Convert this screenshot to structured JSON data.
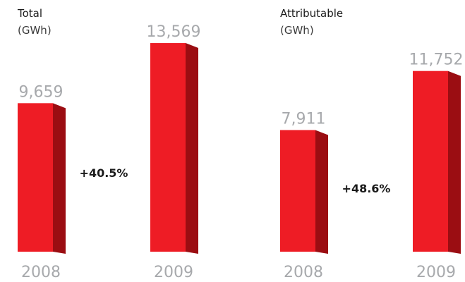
{
  "chart_data": [
    {
      "type": "bar",
      "title": "Total",
      "unit": "(GWh)",
      "categories": [
        "2008",
        "2009"
      ],
      "values": [
        9659,
        13569
      ],
      "value_labels": [
        "9,659",
        "13,569"
      ],
      "change_label": "+40.5%",
      "bar_color": "#ee1c25",
      "bar_side_color": "#9b0d12"
    },
    {
      "type": "bar",
      "title": "Attributable",
      "unit": "(GWh)",
      "categories": [
        "2008",
        "2009"
      ],
      "values": [
        7911,
        11752
      ],
      "value_labels": [
        "7,911",
        "11,752"
      ],
      "change_label": "+48.6%",
      "bar_color": "#ee1c25",
      "bar_side_color": "#9b0d12"
    }
  ]
}
